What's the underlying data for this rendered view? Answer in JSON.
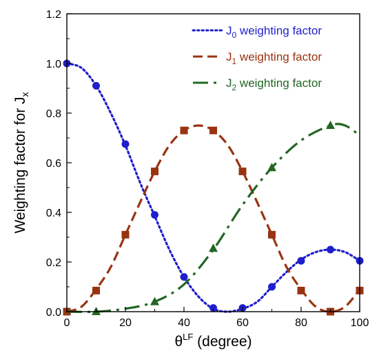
{
  "chart_data": {
    "type": "line",
    "xlabel": {
      "symbol": "θ",
      "sup": "LF",
      "rest": " (degree)"
    },
    "ylabel": {
      "main": "Weighting factor for  J",
      "sub": "x"
    },
    "xlim": [
      0,
      100
    ],
    "ylim": [
      0,
      1.2
    ],
    "xticks": [
      "0",
      "20",
      "40",
      "60",
      "80",
      "100"
    ],
    "yticks": [
      "0.0",
      "0.2",
      "0.4",
      "0.6",
      "0.8",
      "1.0",
      "1.2"
    ],
    "legend_position": "top-right",
    "series": [
      {
        "name_main": "J",
        "name_sub": "0",
        "name_rest": " weighting factor",
        "color": "#1f1fcc",
        "line_style": "dotted",
        "marker": "circle",
        "curve": [
          [
            0,
            1.0
          ],
          [
            5,
            0.982
          ],
          [
            10,
            0.91
          ],
          [
            15,
            0.8
          ],
          [
            20,
            0.67
          ],
          [
            25,
            0.52
          ],
          [
            30,
            0.385
          ],
          [
            35,
            0.25
          ],
          [
            40,
            0.14
          ],
          [
            45,
            0.06
          ],
          [
            50,
            0.012
          ],
          [
            55,
            0.0
          ],
          [
            60,
            0.012
          ],
          [
            65,
            0.04
          ],
          [
            70,
            0.1
          ],
          [
            75,
            0.16
          ],
          [
            80,
            0.21
          ],
          [
            85,
            0.24
          ],
          [
            90,
            0.25
          ],
          [
            95,
            0.24
          ],
          [
            100,
            0.205
          ]
        ],
        "points": [
          [
            0,
            1.0
          ],
          [
            10,
            0.91
          ],
          [
            20,
            0.675
          ],
          [
            30,
            0.39
          ],
          [
            40,
            0.14
          ],
          [
            50,
            0.015
          ],
          [
            60,
            0.015
          ],
          [
            70,
            0.1
          ],
          [
            80,
            0.205
          ],
          [
            90,
            0.25
          ],
          [
            100,
            0.205
          ]
        ]
      },
      {
        "name_main": "J",
        "name_sub": "1",
        "name_rest": " weighting factor",
        "color": "#993311",
        "line_style": "dashed",
        "marker": "square",
        "curve": [
          [
            0,
            0.0
          ],
          [
            5,
            0.02
          ],
          [
            10,
            0.09
          ],
          [
            15,
            0.18
          ],
          [
            20,
            0.31
          ],
          [
            25,
            0.44
          ],
          [
            30,
            0.565
          ],
          [
            35,
            0.67
          ],
          [
            40,
            0.73
          ],
          [
            45,
            0.75
          ],
          [
            50,
            0.73
          ],
          [
            55,
            0.67
          ],
          [
            60,
            0.565
          ],
          [
            65,
            0.44
          ],
          [
            70,
            0.31
          ],
          [
            75,
            0.18
          ],
          [
            80,
            0.09
          ],
          [
            85,
            0.02
          ],
          [
            90,
            0.0
          ],
          [
            95,
            0.02
          ],
          [
            100,
            0.09
          ]
        ],
        "points": [
          [
            0,
            0.0
          ],
          [
            10,
            0.085
          ],
          [
            20,
            0.31
          ],
          [
            30,
            0.565
          ],
          [
            40,
            0.73
          ],
          [
            50,
            0.73
          ],
          [
            60,
            0.565
          ],
          [
            70,
            0.31
          ],
          [
            80,
            0.085
          ],
          [
            90,
            0.0
          ],
          [
            100,
            0.085
          ]
        ]
      },
      {
        "name_main": "J",
        "name_sub": "2",
        "name_rest": " weighting factor",
        "color": "#226622",
        "line_style": "dash-dot",
        "marker": "triangle",
        "curve": [
          [
            0,
            0.0
          ],
          [
            10,
            0.0
          ],
          [
            20,
            0.012
          ],
          [
            30,
            0.04
          ],
          [
            40,
            0.11
          ],
          [
            50,
            0.25
          ],
          [
            60,
            0.43
          ],
          [
            70,
            0.58
          ],
          [
            80,
            0.69
          ],
          [
            90,
            0.75
          ],
          [
            95,
            0.75
          ],
          [
            100,
            0.71
          ]
        ],
        "points": [
          [
            10,
            0.0
          ],
          [
            30,
            0.04
          ],
          [
            50,
            0.255
          ],
          [
            70,
            0.58
          ],
          [
            90,
            0.75
          ]
        ]
      }
    ]
  }
}
